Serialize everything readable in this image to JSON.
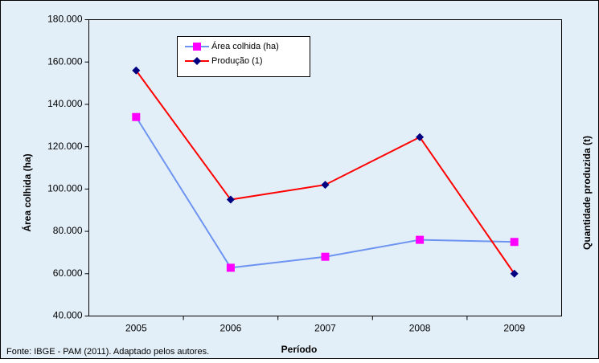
{
  "chart_data": {
    "type": "line",
    "x_label": "Período",
    "y_label": "Área colhida (ha)",
    "y2_label": "Quantidade  produzida (t)",
    "source": "Fonte: IBGE - PAM (2011). Adaptado pelos autores.",
    "categories": [
      "2005",
      "2006",
      "2007",
      "2008",
      "2009"
    ],
    "series": [
      {
        "name": "Área colhida (ha)",
        "color": "#6d94f0",
        "marker_color": "#ff00ff",
        "marker": "square",
        "values": [
          134000,
          62800,
          68000,
          76000,
          75000
        ]
      },
      {
        "name": "Produção (1)",
        "color": "#ff0000",
        "marker_color": "#000080",
        "marker": "diamond",
        "values": [
          156000,
          95000,
          102000,
          124500,
          60000
        ]
      }
    ],
    "ylim": [
      40000,
      180000
    ],
    "yticks": [
      {
        "value": 40000,
        "label": "40.000"
      },
      {
        "value": 60000,
        "label": "60.000"
      },
      {
        "value": 80000,
        "label": "80.000"
      },
      {
        "value": 100000,
        "label": "100.000"
      },
      {
        "value": 120000,
        "label": "120.000"
      },
      {
        "value": 140000,
        "label": "140.000"
      },
      {
        "value": 160000,
        "label": "160.000"
      },
      {
        "value": 180000,
        "label": "180.000"
      }
    ],
    "legend": "top-left"
  }
}
